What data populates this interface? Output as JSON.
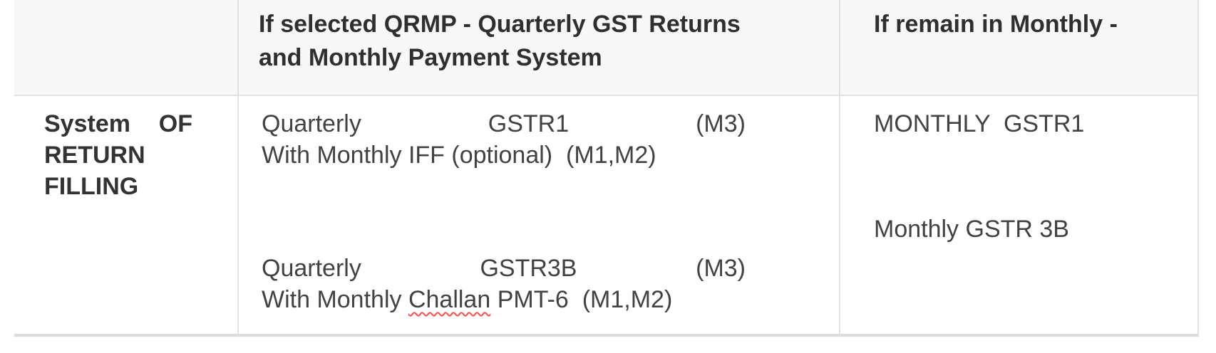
{
  "colors": {
    "header_background": "#f7f7f7",
    "grid_border": "#e2e2e2",
    "bottom_border": "#dbdbdb",
    "header_text": "#2f2f2f",
    "body_text": "#424242",
    "spellcheck_underline": "#ff4d4d"
  },
  "table": {
    "header": {
      "col1": "",
      "col2": "If selected QRMP - Quarterly GST Returns and Monthly Payment System",
      "col3": "If remain in Monthly -"
    },
    "body": {
      "row_label": "System OF RETURN FILLING",
      "qrmp": {
        "para1_line1": "Quarterly GSTR1 (M3)",
        "para1_line2": "With Monthly IFF (optional)  (M1,M2)",
        "para2_line1": "Quarterly GSTR3B (M3)",
        "para2_line2_before": "With Monthly ",
        "para2_line2_misspelled": "Challan",
        "para2_line2_after": " PMT-6  (M1,M2)"
      },
      "monthly": {
        "line1": "MONTHLY  GSTR1",
        "line2": "Monthly GSTR 3B"
      }
    }
  }
}
